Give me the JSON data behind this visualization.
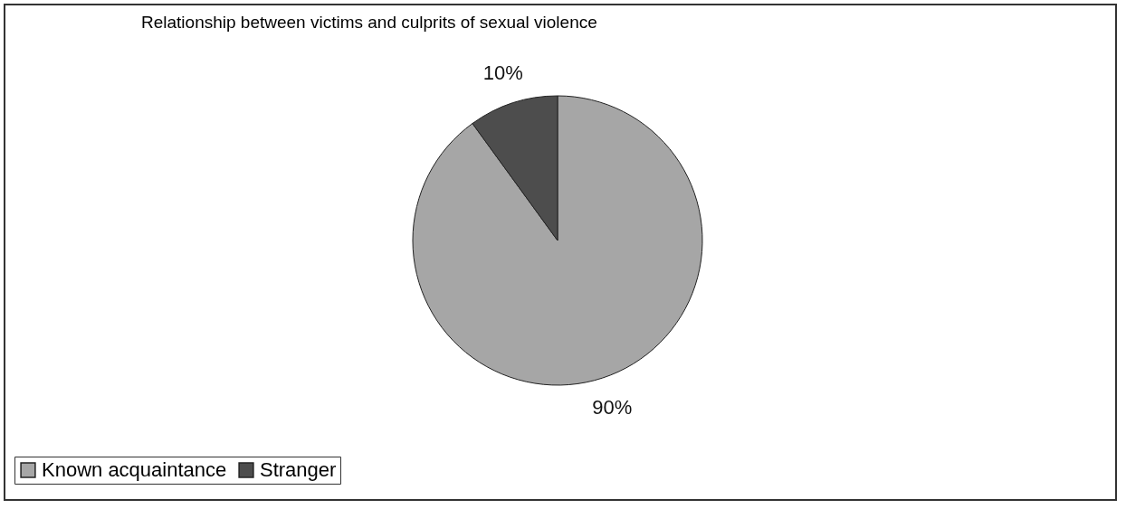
{
  "chart_data": {
    "type": "pie",
    "title": "Relationship between victims and culprits of sexual violence",
    "categories": [
      "Known acquaintance",
      "Stranger"
    ],
    "values": [
      90,
      10
    ],
    "colors": [
      "#a6a6a6",
      "#4d4d4d"
    ],
    "value_labels": [
      "90%",
      "10%"
    ],
    "legend": "bottom"
  }
}
